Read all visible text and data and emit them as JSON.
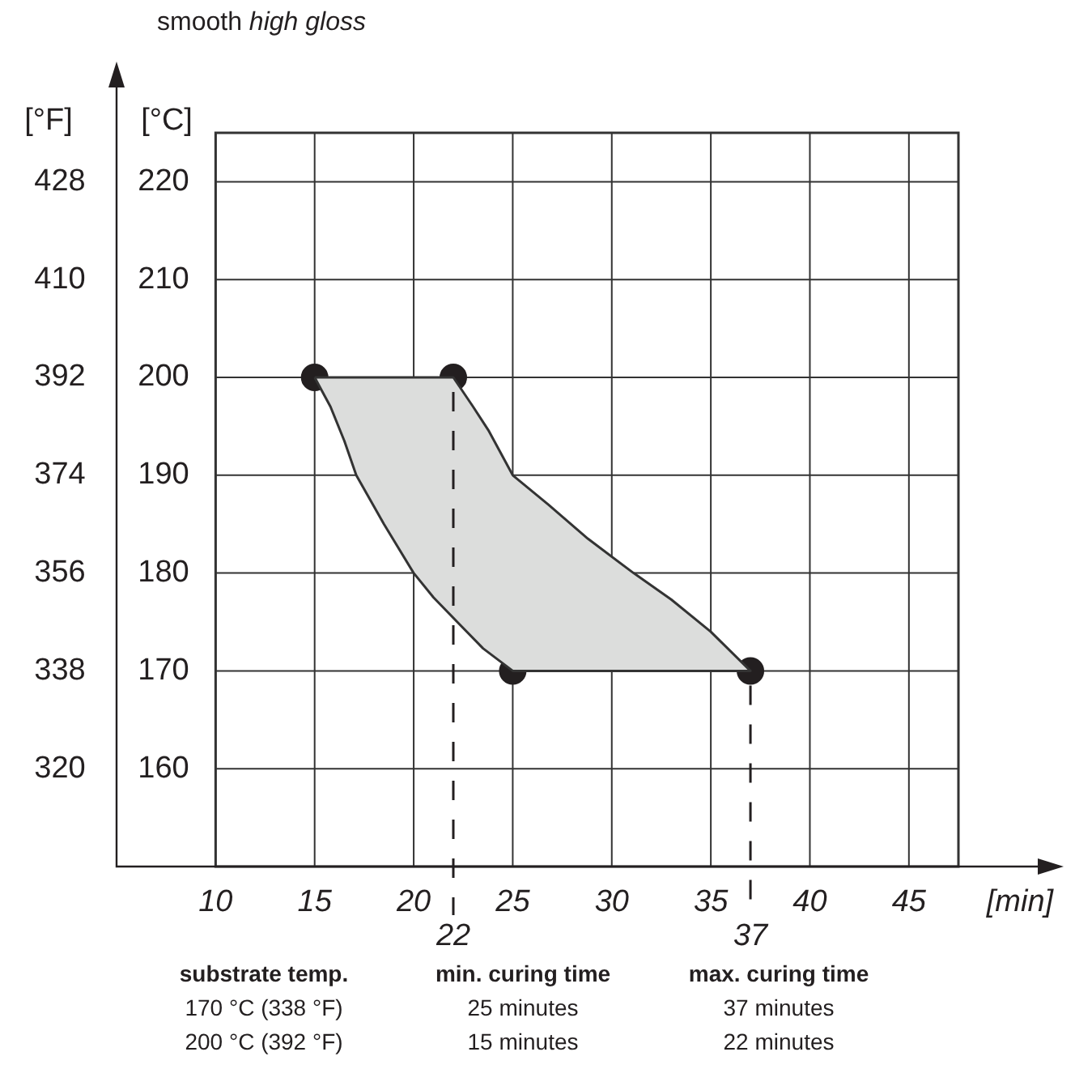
{
  "chart_data": {
    "type": "scatter",
    "title": "smooth",
    "subtitle": "high gloss",
    "xlabel": "[min]",
    "ylabel": "[°C]",
    "y2label": "[°F]",
    "xlim": [
      5,
      47.5
    ],
    "xticks": [
      10,
      15,
      20,
      25,
      30,
      35,
      40,
      45
    ],
    "ylim": [
      150,
      225
    ],
    "yticks": [
      160,
      170,
      180,
      190,
      200,
      210,
      220
    ],
    "y2lim": [
      302,
      437
    ],
    "y2ticks": [
      320,
      338,
      356,
      374,
      392,
      410,
      428
    ],
    "grid": true,
    "series": [
      {
        "type": "area",
        "color": "#dcdddc",
        "x": [
          15,
          22,
          23,
          23.8,
          25,
          26.8,
          28.8,
          31.1,
          33,
          35,
          37,
          25,
          23.5,
          22.2,
          21,
          20,
          18.5,
          17.1,
          16.5,
          15.8,
          15
        ],
        "values": [
          200,
          200,
          197,
          194.5,
          190,
          187,
          183.5,
          180,
          177.3,
          174,
          170,
          170,
          172.3,
          175,
          177.5,
          180,
          185,
          190,
          193.5,
          197,
          200
        ]
      },
      {
        "type": "scatter",
        "color": "#231f20",
        "marker": "circle",
        "x": [
          15,
          22,
          25,
          37
        ],
        "values": [
          200,
          200,
          170,
          170
        ]
      }
    ],
    "ref_lines": [
      {
        "axis": "x",
        "value": 22,
        "label": "22",
        "line_style": "dashed"
      },
      {
        "axis": "x",
        "value": 37,
        "label": "37",
        "line_style": "dashed"
      }
    ],
    "annotations": [
      "substrate temp.",
      "min. curing time",
      "max. curing time",
      "170 °C (338 °F)",
      "25 minutes",
      "37 minutes",
      "200 °C (392 °F)",
      "15 minutes",
      "22 minutes"
    ]
  }
}
